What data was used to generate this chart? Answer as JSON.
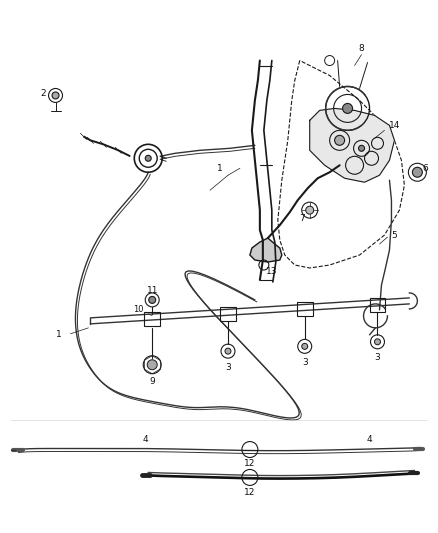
{
  "bg_color": "#ffffff",
  "line_color": "#1a1a1a",
  "fig_width": 4.38,
  "fig_height": 5.33,
  "dpi": 100,
  "cable_color": "#333333",
  "dark_cable_color": "#111111",
  "bracket_color": "#2a2a2a",
  "coord_system": {
    "xlim": [
      0,
      438
    ],
    "ylim": [
      0,
      533
    ]
  }
}
